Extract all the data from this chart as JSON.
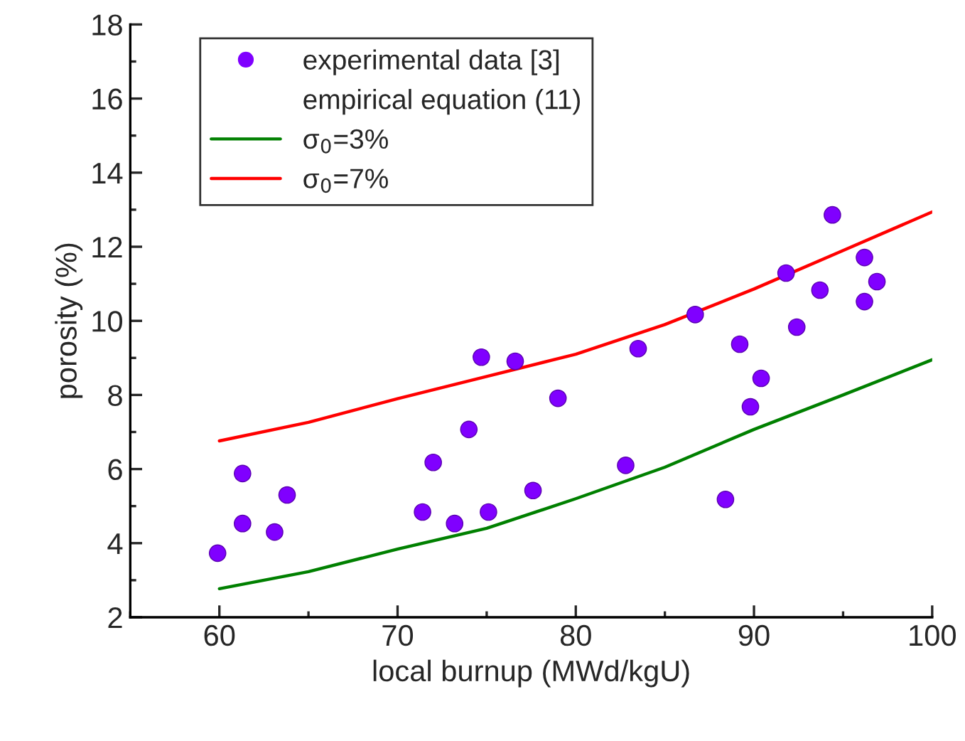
{
  "chart_data": {
    "type": "scatter",
    "xlabel": "local burnup (MWd/kgU)",
    "ylabel": "porosity (%)",
    "xlim": [
      55,
      100
    ],
    "xticks": [
      60,
      70,
      80,
      90,
      100
    ],
    "ylim": [
      2,
      18
    ],
    "yticks": [
      2,
      4,
      6,
      8,
      10,
      12,
      14,
      16,
      18
    ],
    "grid": false,
    "legend": "top left",
    "annotations": [
      "empirical equation (11)"
    ],
    "series": [
      {
        "name": "experimental data [3]",
        "marker": "circle",
        "color": "#8000ff",
        "x": [
          59.9,
          61.3,
          61.3,
          63.1,
          63.8,
          71.4,
          72.0,
          73.2,
          74.0,
          74.7,
          75.1,
          76.6,
          77.6,
          79.0,
          82.8,
          83.5,
          86.7,
          88.4,
          89.2,
          89.8,
          90.4,
          91.8,
          92.4,
          93.7,
          94.4,
          96.2,
          96.2,
          96.9
        ],
        "values": [
          3.73,
          5.88,
          4.53,
          4.3,
          5.3,
          4.84,
          6.18,
          4.53,
          7.07,
          9.02,
          4.84,
          8.91,
          5.42,
          7.91,
          6.1,
          9.25,
          10.17,
          5.18,
          9.37,
          7.68,
          8.45,
          11.29,
          9.83,
          10.83,
          12.86,
          10.52,
          11.71,
          11.06
        ]
      },
      {
        "name": "σ$_{0}$=3%",
        "type": "line",
        "color": "#008000",
        "line_style": "solid",
        "x": [
          60,
          65,
          70,
          75,
          80,
          85,
          90,
          95,
          100
        ],
        "values": [
          2.77,
          3.23,
          3.84,
          4.4,
          5.2,
          6.05,
          7.07,
          8.0,
          8.95
        ]
      },
      {
        "name": "σ$_{0}$=7%",
        "type": "line",
        "color": "#ff0000",
        "line_style": "solid",
        "x": [
          60,
          65,
          70,
          75,
          80,
          85,
          90,
          95,
          100
        ],
        "values": [
          6.76,
          7.26,
          7.9,
          8.5,
          9.1,
          9.9,
          10.86,
          11.9,
          12.94
        ]
      }
    ]
  }
}
